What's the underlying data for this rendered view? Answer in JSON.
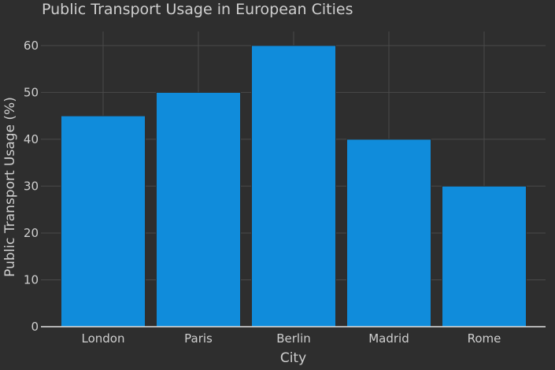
{
  "chart_data": {
    "type": "bar",
    "title": "Public Transport Usage in European Cities",
    "xlabel": "City",
    "ylabel": "Public Transport Usage (%)",
    "categories": [
      "London",
      "Paris",
      "Berlin",
      "Madrid",
      "Rome"
    ],
    "values": [
      45,
      50,
      60,
      40,
      30
    ],
    "ylim": [
      0,
      63
    ],
    "yticks": [
      0,
      10,
      20,
      30,
      40,
      50,
      60
    ],
    "grid": true,
    "legend": "none",
    "colors": {
      "background": "#2e2e2e",
      "bar": "#108cdb",
      "grid": "#4a4a4a",
      "text": "#cfcfcf",
      "axis": "#e0e0e0"
    }
  }
}
